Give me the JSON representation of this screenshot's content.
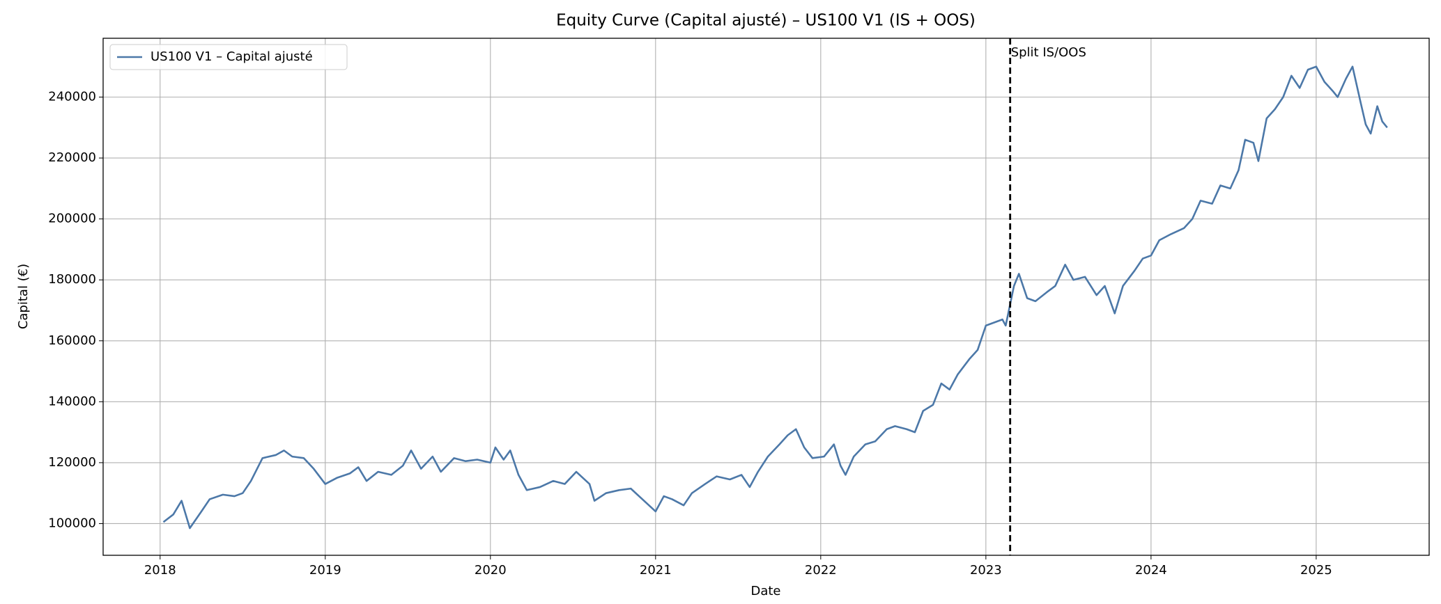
{
  "chart_data": {
    "type": "line",
    "title": "Equity Curve (Capital ajusté) – US100 V1 (IS + OOS)",
    "xlabel": "Date",
    "ylabel": "Capital (€)",
    "x": [
      2018.02,
      2018.08,
      2018.13,
      2018.18,
      2018.25,
      2018.3,
      2018.38,
      2018.45,
      2018.5,
      2018.55,
      2018.62,
      2018.7,
      2018.75,
      2018.8,
      2018.87,
      2018.93,
      2019.0,
      2019.07,
      2019.15,
      2019.2,
      2019.25,
      2019.32,
      2019.4,
      2019.47,
      2019.52,
      2019.58,
      2019.65,
      2019.7,
      2019.78,
      2019.85,
      2019.92,
      2020.0,
      2020.03,
      2020.08,
      2020.12,
      2020.17,
      2020.22,
      2020.3,
      2020.38,
      2020.45,
      2020.52,
      2020.6,
      2020.63,
      2020.7,
      2020.78,
      2020.85,
      2020.92,
      2021.0,
      2021.05,
      2021.1,
      2021.17,
      2021.22,
      2021.3,
      2021.37,
      2021.45,
      2021.52,
      2021.57,
      2021.62,
      2021.68,
      2021.75,
      2021.8,
      2021.85,
      2021.9,
      2021.95,
      2022.02,
      2022.08,
      2022.12,
      2022.15,
      2022.2,
      2022.27,
      2022.33,
      2022.4,
      2022.45,
      2022.52,
      2022.57,
      2022.62,
      2022.68,
      2022.73,
      2022.78,
      2022.83,
      2022.9,
      2022.95,
      2023.0,
      2023.05,
      2023.1,
      2023.12,
      2023.17,
      2023.2,
      2023.25,
      2023.3,
      2023.37,
      2023.42,
      2023.48,
      2023.53,
      2023.6,
      2023.67,
      2023.72,
      2023.78,
      2023.83,
      2023.9,
      2023.95,
      2024.0,
      2024.05,
      2024.12,
      2024.2,
      2024.25,
      2024.3,
      2024.37,
      2024.42,
      2024.48,
      2024.53,
      2024.57,
      2024.62,
      2024.65,
      2024.7,
      2024.75,
      2024.8,
      2024.85,
      2024.9,
      2024.95,
      2025.0,
      2025.05,
      2025.1,
      2025.13,
      2025.18,
      2025.22,
      2025.27,
      2025.3,
      2025.33,
      2025.37,
      2025.4,
      2025.43
    ],
    "series": [
      {
        "name": "US100 V1 – Capital ajusté",
        "color": "#4c78a8",
        "values": [
          100500,
          103000,
          107500,
          98500,
          104000,
          108000,
          109500,
          109000,
          110000,
          114000,
          121500,
          122500,
          124000,
          122000,
          121500,
          118000,
          113000,
          115000,
          116500,
          118500,
          114000,
          117000,
          116000,
          119000,
          124000,
          118000,
          122000,
          117000,
          121500,
          120500,
          121000,
          120000,
          125000,
          121000,
          124000,
          116000,
          111000,
          112000,
          114000,
          113000,
          117000,
          113000,
          107500,
          110000,
          111000,
          111500,
          108000,
          104000,
          109000,
          108000,
          106000,
          110000,
          113000,
          115500,
          114500,
          116000,
          112000,
          117000,
          122000,
          126000,
          129000,
          131000,
          125000,
          121500,
          122000,
          126000,
          119000,
          116000,
          122000,
          126000,
          127000,
          131000,
          132000,
          131000,
          130000,
          137000,
          139000,
          146000,
          144000,
          149000,
          154000,
          157000,
          165000,
          166000,
          167000,
          165000,
          178000,
          182000,
          174000,
          173000,
          176000,
          178000,
          185000,
          180000,
          181000,
          175000,
          178000,
          169000,
          178000,
          183000,
          187000,
          188000,
          193000,
          195000,
          197000,
          200000,
          206000,
          205000,
          211000,
          210000,
          216000,
          226000,
          225000,
          219000,
          233000,
          236000,
          240000,
          247000,
          243000,
          249000,
          250000,
          245000,
          242000,
          240000,
          246000,
          250000,
          238000,
          231000,
          228000,
          237000,
          232000,
          230000
        ]
      }
    ],
    "xlim": [
      2017.655,
      2025.684
    ],
    "xticks": [
      2018,
      2019,
      2020,
      2021,
      2022,
      2023,
      2024,
      2025
    ],
    "ylim": [
      89600,
      259300
    ],
    "yticks": [
      100000,
      120000,
      140000,
      160000,
      180000,
      200000,
      220000,
      240000
    ],
    "grid": true,
    "legend": "upper left",
    "vlines": [
      {
        "x": 2023.147,
        "label": "Split IS/OOS",
        "color": "#000000"
      }
    ]
  }
}
